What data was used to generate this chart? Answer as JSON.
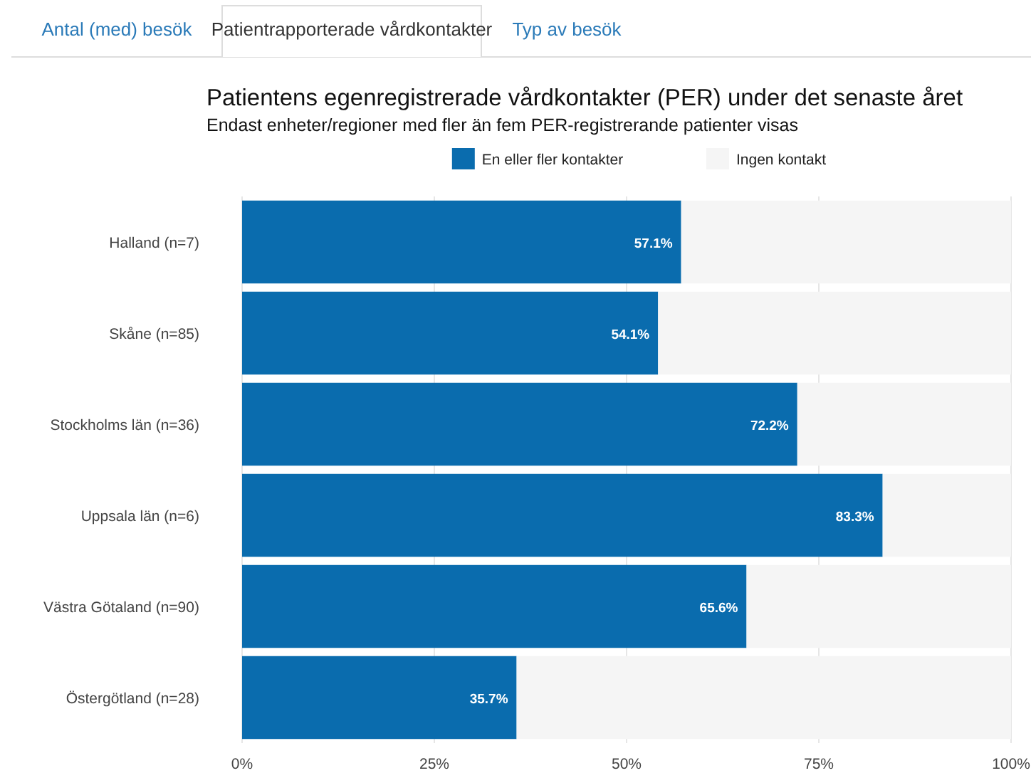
{
  "chart_data": {
    "type": "bar",
    "orientation": "horizontal",
    "stacked": true,
    "title": "Patientens egenregistrerade vårdkontakter (PER) under det senaste året",
    "subtitle": "Endast enheter/regioner med fler än fem PER-registrerande patienter visas",
    "annotations": [
      "Antal (med) besök",
      "Patientrapporterade vårdkontakter",
      "Typ av besök"
    ],
    "categories": [
      "Halland (n=7)",
      "Skåne (n=85)",
      "Stockholms län (n=36)",
      "Uppsala län (n=6)",
      "Västra Götaland (n=90)",
      "Östergötland (n=28)"
    ],
    "series": [
      {
        "name": "En eller fler kontakter",
        "color": "#0a6cae",
        "values": [
          57.1,
          54.1,
          72.2,
          83.3,
          65.6,
          35.7
        ],
        "value_labels": [
          "57.1%",
          "54.1%",
          "72.2%",
          "83.3%",
          "65.6%",
          "35.7%"
        ]
      },
      {
        "name": "Ingen kontakt",
        "color": "#f5f5f5",
        "values": [
          42.9,
          45.9,
          27.8,
          16.7,
          34.4,
          64.3
        ]
      }
    ],
    "xlim": [
      0,
      100
    ],
    "xticks": [
      {
        "value": 0,
        "label": "0%"
      },
      {
        "value": 25,
        "label": "25%"
      },
      {
        "value": 50,
        "label": "50%"
      },
      {
        "value": 75,
        "label": "75%"
      },
      {
        "value": 100,
        "label": "100%"
      }
    ],
    "grid": "x",
    "legend": "top"
  }
}
